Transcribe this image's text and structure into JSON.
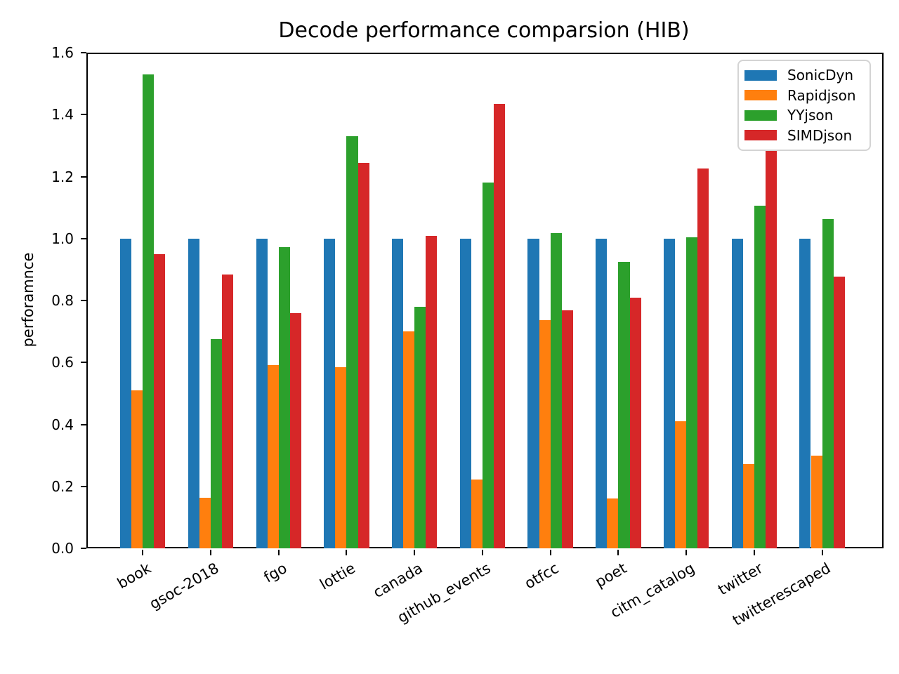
{
  "chart_data": {
    "type": "bar",
    "title": "Decode performance comparsion (HIB)",
    "xlabel": "",
    "ylabel": "perforamnce",
    "categories": [
      "book",
      "gsoc-2018",
      "fgo",
      "lottie",
      "canada",
      "github_events",
      "otfcc",
      "poet",
      "citm_catalog",
      "twitter",
      "twitterescaped"
    ],
    "series": [
      {
        "name": "SonicDyn",
        "color": "#1f77b4",
        "values": [
          1.0,
          1.0,
          1.0,
          1.0,
          1.0,
          1.0,
          1.0,
          1.0,
          1.0,
          1.0,
          1.0
        ]
      },
      {
        "name": "Rapidjson",
        "color": "#ff7f0e",
        "values": [
          0.51,
          0.163,
          0.592,
          0.585,
          0.7,
          0.223,
          0.737,
          0.161,
          0.41,
          0.272,
          0.3
        ]
      },
      {
        "name": "YYjson",
        "color": "#2ca02c",
        "values": [
          1.53,
          0.676,
          0.972,
          1.331,
          0.779,
          1.18,
          1.017,
          0.924,
          1.003,
          1.105,
          1.064
        ]
      },
      {
        "name": "SIMDjson",
        "color": "#d62728",
        "values": [
          0.95,
          0.884,
          0.759,
          1.244,
          1.009,
          1.435,
          0.769,
          0.808,
          1.226,
          1.29,
          0.878
        ]
      }
    ],
    "ylim": [
      0,
      1.6
    ],
    "yticks": [
      "0.0",
      "0.2",
      "0.4",
      "0.6",
      "0.8",
      "1.0",
      "1.2",
      "1.4",
      "1.6"
    ],
    "ytick_step": 0.2,
    "xtick_rotation_deg": 30,
    "grid": false,
    "legend_position": "upper right",
    "frame_color": "#000000",
    "background_color": "#ffffff"
  }
}
